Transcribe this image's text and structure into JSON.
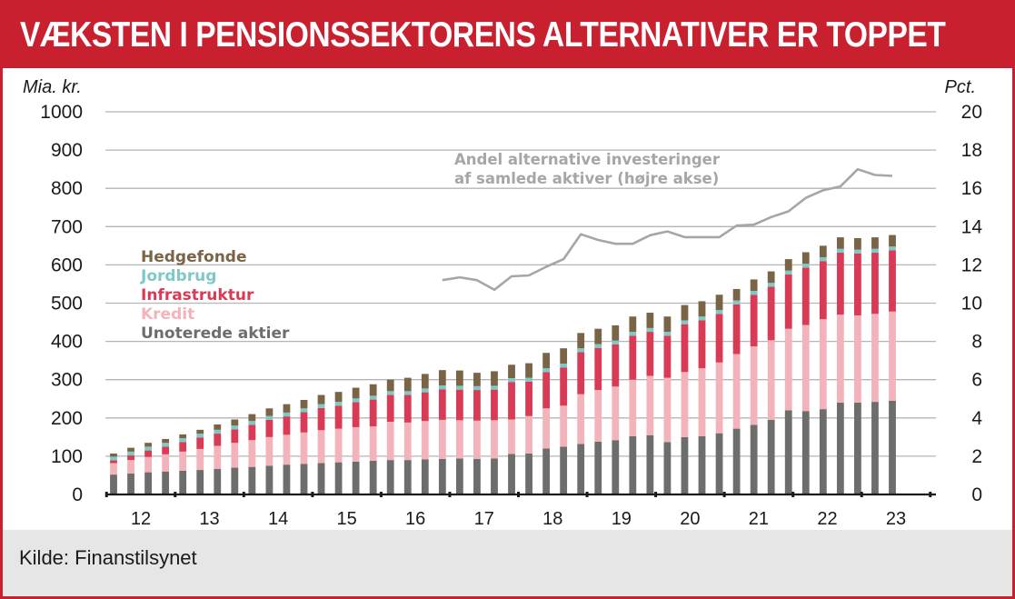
{
  "header": {
    "title": "VÆKSTEN I PENSIONSSEKTORENS ALTERNATIVER ER TOPPET"
  },
  "footer": {
    "source": "Kilde: Finanstilsynet"
  },
  "colors": {
    "brand": "#c8202f",
    "unoterede": "#6d6e6b",
    "kredit": "#f2b3bb",
    "infrastruktur": "#d93a55",
    "jordbrug": "#7fc9c5",
    "hedgefonde": "#7a6446",
    "line": "#a6a6a6",
    "grid": "#b5b5b5"
  },
  "chart_data": {
    "type": "bar",
    "stacked": true,
    "title": "VÆKSTEN I PENSIONSSEKTORENS ALTERNATIVER ER TOPPET",
    "left_axis_label": "Mia. kr.",
    "right_axis_label": "Pct.",
    "left_ylim": [
      0,
      1000
    ],
    "right_ylim": [
      0,
      20
    ],
    "left_ticks": [
      "1000",
      "900",
      "800",
      "700",
      "600",
      "500",
      "400",
      "300",
      "200",
      "100",
      "0"
    ],
    "right_ticks": [
      "20",
      "18",
      "16",
      "14",
      "12",
      "10",
      "8",
      "6",
      "4",
      "2",
      "0"
    ],
    "x_tick_labels": [
      "12",
      "13",
      "14",
      "15",
      "16",
      "17",
      "18",
      "19",
      "20",
      "21",
      "22",
      "23"
    ],
    "legend": [
      "Hedgefonde",
      "Jordbrug",
      "Infrastruktur",
      "Kredit",
      "Unoterede aktier"
    ],
    "line_annotation": [
      "Andel alternative investeringer",
      "af samlede aktiver (højre akse)"
    ],
    "series": [
      {
        "name": "Unoterede aktier",
        "values": [
          52,
          55,
          58,
          60,
          62,
          64,
          67,
          70,
          72,
          75,
          78,
          80,
          82,
          84,
          86,
          88,
          90,
          90,
          92,
          93,
          94,
          93,
          94,
          106,
          107,
          120,
          125,
          132,
          138,
          142,
          152,
          155,
          137,
          150,
          152,
          160,
          172,
          182,
          195,
          220,
          218,
          223,
          240,
          240,
          242,
          245
        ]
      },
      {
        "name": "Kredit",
        "values": [
          30,
          35,
          40,
          45,
          50,
          55,
          60,
          65,
          70,
          75,
          78,
          82,
          86,
          88,
          90,
          90,
          100,
          98,
          100,
          102,
          100,
          100,
          100,
          90,
          98,
          105,
          107,
          130,
          135,
          140,
          148,
          155,
          168,
          170,
          178,
          185,
          195,
          205,
          208,
          213,
          225,
          235,
          230,
          228,
          230,
          233
        ]
      },
      {
        "name": "Infrastruktur",
        "values": [
          7,
          12,
          17,
          20,
          25,
          30,
          32,
          35,
          40,
          45,
          48,
          53,
          58,
          60,
          65,
          70,
          70,
          72,
          75,
          80,
          80,
          80,
          80,
          98,
          90,
          95,
          100,
          110,
          110,
          110,
          115,
          115,
          110,
          125,
          125,
          127,
          130,
          135,
          140,
          142,
          150,
          152,
          162,
          162,
          160,
          160
        ]
      },
      {
        "name": "Jordbrug",
        "values": [
          10,
          10,
          10,
          10,
          10,
          10,
          10,
          10,
          10,
          10,
          10,
          10,
          10,
          10,
          10,
          10,
          10,
          10,
          10,
          10,
          10,
          10,
          10,
          10,
          10,
          10,
          10,
          10,
          10,
          10,
          10,
          10,
          10,
          10,
          10,
          10,
          10,
          10,
          10,
          10,
          10,
          10,
          10,
          10,
          10,
          10
        ]
      },
      {
        "name": "Hedgefonde",
        "values": [
          8,
          10,
          10,
          10,
          10,
          10,
          14,
          16,
          18,
          20,
          22,
          22,
          24,
          26,
          28,
          30,
          30,
          35,
          38,
          40,
          40,
          35,
          38,
          35,
          38,
          40,
          40,
          40,
          40,
          40,
          40,
          40,
          40,
          40,
          40,
          40,
          30,
          30,
          30,
          30,
          30,
          30,
          30,
          30,
          30,
          30
        ]
      }
    ],
    "line_series": {
      "name": "Andel alternative investeringer af samlede aktiver (højre akse)",
      "axis": "right",
      "start_bar_index": 19,
      "values": [
        11.2,
        11.35,
        11.2,
        10.7,
        11.4,
        11.45,
        11.9,
        12.3,
        13.6,
        13.3,
        13.1,
        13.1,
        13.55,
        13.75,
        13.45,
        13.45,
        13.45,
        14.05,
        14.1,
        14.5,
        14.8,
        15.5,
        15.9,
        16.1,
        17.0,
        16.7,
        16.65
      ]
    }
  }
}
